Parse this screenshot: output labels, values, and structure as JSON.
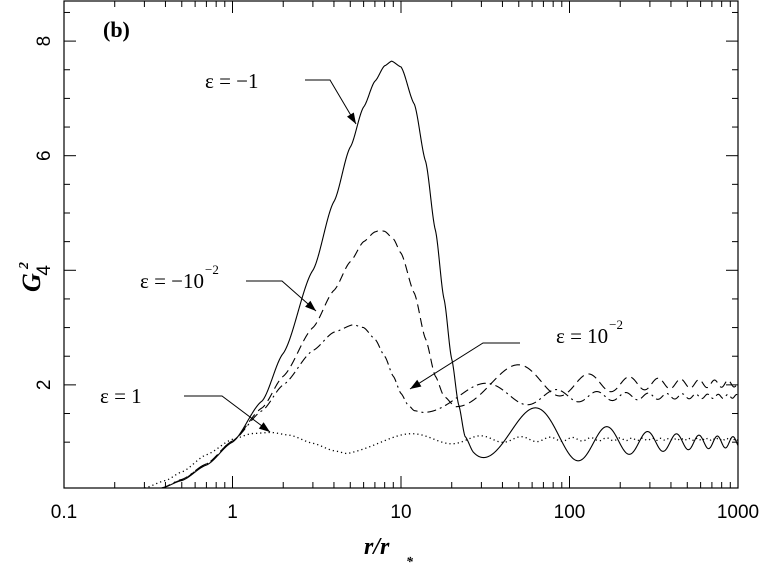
{
  "chart_data": {
    "type": "line",
    "panel_label": "(b)",
    "xlabel": "r/r",
    "xlabel_sub": "*",
    "ylabel": "G",
    "ylabel_sup": "2",
    "xscale": "log",
    "xlim": [
      0.1,
      1000
    ],
    "ylim": [
      0.2,
      8.7
    ],
    "x_ticks": [
      0.1,
      1,
      10,
      100,
      1000
    ],
    "x_tick_labels": [
      "0.1",
      "1",
      "10",
      "100",
      "1000"
    ],
    "y_ticks": [
      2,
      4,
      6,
      8
    ],
    "y_tick_labels": [
      "2",
      "4",
      "6",
      "8"
    ],
    "grid": false,
    "legend": "none",
    "series": [
      {
        "label": {
          "base": "ε = −1",
          "exp": ""
        },
        "style": "solid",
        "params": {
          "peak_x": 8.8,
          "peak_y": 7.65,
          "min_x": 27,
          "min_y": 0.82,
          "asym": 1.0,
          "amp": 0.95,
          "decay": 0.55,
          "freq": 8.0
        },
        "x": [
          0.38,
          0.5,
          0.7,
          1.0,
          1.5,
          2,
          3,
          4,
          5,
          6,
          7,
          8,
          8.8,
          10,
          12,
          14,
          16,
          18,
          20,
          22,
          24,
          27
        ],
        "y": [
          0.2,
          0.33,
          0.6,
          1.0,
          1.72,
          2.55,
          4.0,
          5.2,
          6.15,
          6.85,
          7.3,
          7.57,
          7.65,
          7.55,
          6.9,
          5.9,
          4.7,
          3.5,
          2.45,
          1.65,
          1.1,
          0.82
        ]
      },
      {
        "label": {
          "base": "ε = −10",
          "exp": "−2"
        },
        "style": "dashed",
        "params": {
          "peak_x": 7.5,
          "peak_y": 4.7,
          "min_x": 21,
          "min_y": 1.62,
          "asym": 2.02,
          "amp": 0.55,
          "decay": 0.6,
          "freq": 8.0
        },
        "x": [
          0.38,
          0.5,
          0.7,
          1.0,
          1.5,
          2,
          3,
          4,
          5,
          6,
          7,
          7.5,
          8,
          9,
          10,
          12,
          14,
          16,
          18,
          21
        ],
        "y": [
          0.2,
          0.34,
          0.62,
          1.02,
          1.6,
          2.15,
          3.0,
          3.65,
          4.15,
          4.5,
          4.67,
          4.7,
          4.68,
          4.55,
          4.3,
          3.6,
          2.8,
          2.15,
          1.8,
          1.62
        ]
      },
      {
        "label": {
          "base": "ε = 10",
          "exp": "−2"
        },
        "style": "dashdot",
        "params": {
          "peak_x": 5.2,
          "peak_y": 3.05,
          "min_x": 13.5,
          "min_y": 1.52,
          "asym": 1.8,
          "amp": 0.38,
          "decay": 0.6,
          "freq": 8.0
        },
        "x": [
          0.38,
          0.5,
          0.7,
          1.0,
          1.5,
          2,
          3,
          4,
          5.2,
          6,
          7,
          8,
          9,
          10,
          11,
          12,
          13.5
        ],
        "y": [
          0.2,
          0.35,
          0.62,
          1.02,
          1.55,
          2.0,
          2.6,
          2.92,
          3.05,
          3.0,
          2.8,
          2.5,
          2.15,
          1.85,
          1.65,
          1.55,
          1.52
        ]
      },
      {
        "label": {
          "base": "ε = 1",
          "exp": ""
        },
        "style": "dotted",
        "params": {
          "peak_x": 1.7,
          "peak_y": 1.17,
          "min_x": 4.8,
          "min_y": 0.8,
          "asym": 1.05,
          "amp": 0.17,
          "decay": 0.7,
          "freq": 8.0
        },
        "x": [
          0.3,
          0.4,
          0.5,
          0.7,
          1.0,
          1.3,
          1.7,
          2.2,
          3.0,
          4.0,
          4.8
        ],
        "y": [
          0.2,
          0.33,
          0.48,
          0.78,
          1.05,
          1.15,
          1.17,
          1.12,
          0.98,
          0.85,
          0.8
        ]
      }
    ]
  }
}
